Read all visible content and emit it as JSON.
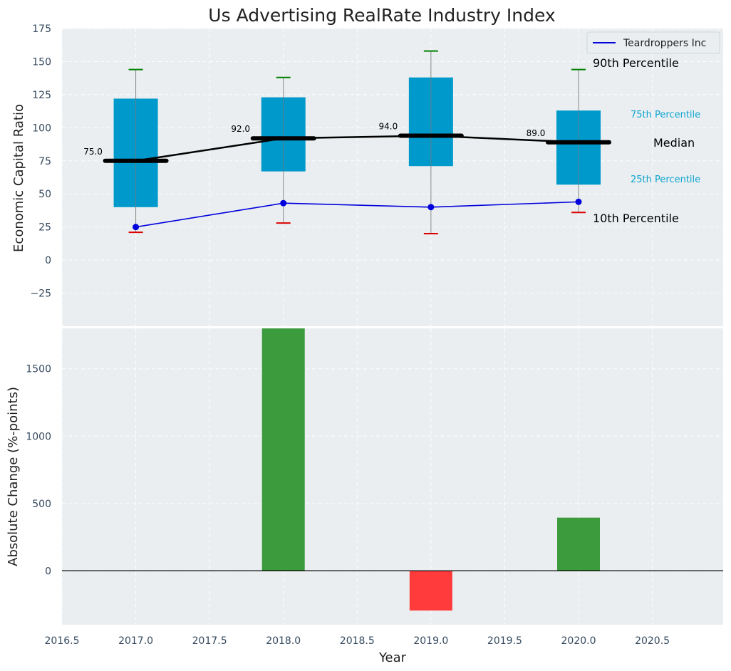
{
  "chart_data": [
    {
      "type": "box",
      "title": "Us Advertising RealRate Industry Index",
      "ylabel": "Economic Capital Ratio",
      "ylim": [
        -50,
        175
      ],
      "yticks": [
        -25,
        0,
        25,
        50,
        75,
        100,
        125,
        150,
        175
      ],
      "grid": true,
      "years": [
        2017.0,
        2018.0,
        2019.0,
        2020.0
      ],
      "boxes": [
        {
          "year": 2017.0,
          "p10": 21,
          "p25": 40,
          "median": 75.0,
          "p75": 122,
          "p90": 144,
          "median_label": "75.0"
        },
        {
          "year": 2018.0,
          "p10": 28,
          "p25": 67,
          "median": 92.0,
          "p75": 123,
          "p90": 138,
          "median_label": "92.0"
        },
        {
          "year": 2019.0,
          "p10": 20,
          "p25": 71,
          "median": 94.0,
          "p75": 138,
          "p90": 158,
          "median_label": "94.0"
        },
        {
          "year": 2020.0,
          "p10": 36,
          "p25": 57,
          "median": 89.0,
          "p75": 113,
          "p90": 144,
          "median_label": "89.0"
        }
      ],
      "company": {
        "name": "Teardroppers Inc",
        "values": [
          25,
          43,
          40,
          44
        ]
      },
      "legend": {
        "position": "top-right",
        "entries": [
          "Teardroppers Inc"
        ]
      },
      "annotations": {
        "p90": "90th Percentile",
        "p75": "75th Percentile",
        "median": "Median",
        "p25": "25th Percentile",
        "p10": "10th Percentile"
      }
    },
    {
      "type": "bar",
      "ylabel": "Absolute Change (%-points)",
      "xlabel": "Year",
      "ylim": [
        -400,
        1800
      ],
      "yticks": [
        0,
        500,
        1000,
        1500
      ],
      "xticks": [
        2016.5,
        2017.0,
        2017.5,
        2018.0,
        2018.5,
        2019.0,
        2019.5,
        2020.0,
        2020.5
      ],
      "xtick_labels": [
        "2016.5",
        "2017.0",
        "2017.5",
        "2018.0",
        "2018.5",
        "2019.0",
        "2019.5",
        "2020.0",
        "2020.5"
      ],
      "xlim": [
        2016.5,
        2020.98
      ],
      "grid": true,
      "x": [
        2018.0,
        2019.0,
        2020.0
      ],
      "values": [
        1800,
        -295,
        395
      ],
      "colors": {
        "positive": "#3c9b3c",
        "negative": "#ff3b3b"
      }
    }
  ],
  "colors": {
    "box": "#0099cc",
    "median_line": "#000000",
    "company_line": "#0000dd",
    "p90_cap": "#008000",
    "p10_cap": "#dd0000",
    "panel_bg": "#eaeef0",
    "tick_text": "#34495e"
  }
}
